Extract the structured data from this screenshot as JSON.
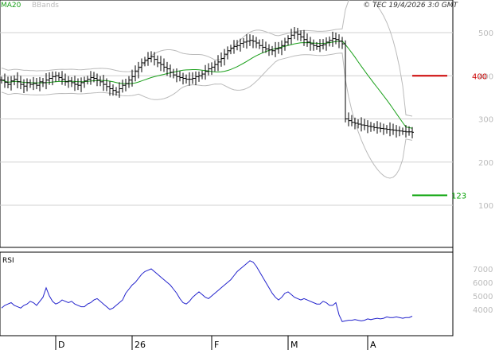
{
  "header": {
    "series_ma": "MA20",
    "series_bb": "BBands",
    "copyright": "© TEC 19/4/2026 3:0 GMT"
  },
  "colors": {
    "ma": "#1aa01a",
    "bbands": "#bbbbbb",
    "price": "#000000",
    "rsi": "#2222cc",
    "resistance": "#cc0000",
    "support": "#00a000",
    "grid": "#d0d0d0",
    "tick_text": "#bbbbbb"
  },
  "chart_data": [
    {
      "type": "ohlc",
      "yticks": [
        100,
        200,
        300,
        400,
        500
      ],
      "ylim": [
        0,
        560
      ],
      "x_month_labels": [
        "D",
        "26",
        "F",
        "M",
        "A"
      ],
      "x_month_index": [
        17,
        41,
        66,
        90,
        115
      ],
      "bars": 130,
      "levels": [
        {
          "name": "resistance",
          "value": "400",
          "price": 400
        },
        {
          "name": "support",
          "value": "123",
          "price": 123
        }
      ],
      "close": [
        390,
        385,
        380,
        388,
        392,
        386,
        380,
        376,
        384,
        380,
        382,
        378,
        386,
        384,
        390,
        394,
        398,
        400,
        396,
        392,
        386,
        388,
        384,
        380,
        378,
        384,
        388,
        392,
        396,
        394,
        390,
        386,
        380,
        375,
        370,
        366,
        362,
        370,
        378,
        382,
        390,
        398,
        410,
        420,
        430,
        436,
        440,
        444,
        438,
        430,
        426,
        420,
        416,
        408,
        402,
        398,
        396,
        394,
        392,
        392,
        394,
        398,
        400,
        404,
        410,
        416,
        420,
        426,
        432,
        440,
        450,
        458,
        464,
        468,
        470,
        475,
        478,
        480,
        482,
        480,
        476,
        470,
        466,
        462,
        460,
        458,
        462,
        464,
        470,
        478,
        486,
        494,
        500,
        496,
        490,
        484,
        478,
        474,
        470,
        468,
        470,
        472,
        478,
        482,
        486,
        484,
        480,
        474,
        300,
        296,
        292,
        290,
        288,
        286,
        285,
        283,
        282,
        280,
        279,
        278,
        277,
        276,
        275,
        274,
        273,
        272,
        271,
        270,
        270,
        269
      ]
    },
    {
      "type": "line",
      "title": "RSI",
      "yticks": [
        "7000",
        "6000",
        "5000",
        "4000"
      ],
      "ylim": [
        3000,
        8000
      ],
      "values": [
        4100,
        4300,
        4400,
        4500,
        4300,
        4200,
        4100,
        4300,
        4400,
        4600,
        4500,
        4300,
        4600,
        4900,
        5600,
        5000,
        4600,
        4400,
        4500,
        4700,
        4600,
        4500,
        4600,
        4400,
        4300,
        4200,
        4200,
        4400,
        4500,
        4700,
        4800,
        4600,
        4400,
        4200,
        4000,
        4100,
        4300,
        4500,
        4700,
        5200,
        5500,
        5800,
        6000,
        6300,
        6600,
        6800,
        6900,
        7000,
        6800,
        6600,
        6400,
        6200,
        6000,
        5800,
        5500,
        5200,
        4800,
        4500,
        4400,
        4600,
        4900,
        5100,
        5300,
        5100,
        4900,
        4800,
        5000,
        5200,
        5400,
        5600,
        5800,
        6000,
        6200,
        6500,
        6800,
        7000,
        7200,
        7400,
        7600,
        7500,
        7200,
        6800,
        6400,
        6000,
        5600,
        5200,
        4900,
        4700,
        4900,
        5200,
        5300,
        5100,
        4900,
        4800,
        4700,
        4800,
        4700,
        4600,
        4500,
        4400,
        4400,
        4600,
        4500,
        4300,
        4300,
        4500,
        3600,
        3100,
        3150,
        3200,
        3200,
        3250,
        3200,
        3150,
        3200,
        3300,
        3250,
        3300,
        3350,
        3300,
        3350,
        3450,
        3400,
        3400,
        3450,
        3400,
        3350,
        3400,
        3400,
        3500
      ]
    }
  ]
}
